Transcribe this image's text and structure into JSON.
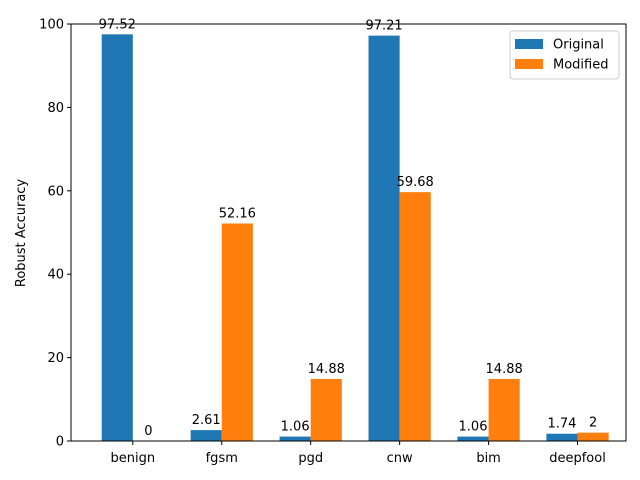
{
  "chart_data": {
    "type": "bar",
    "title": "",
    "xlabel": "",
    "ylabel": "Robust Accuracy",
    "categories": [
      "benign",
      "fgsm",
      "pgd",
      "cnw",
      "bim",
      "deepfool"
    ],
    "series": [
      {
        "name": "Original",
        "color": "#1f77b4",
        "values": [
          97.52,
          2.61,
          1.06,
          97.21,
          1.06,
          1.74
        ],
        "labels": [
          "97.52",
          "2.61",
          "1.06",
          "97.21",
          "1.06",
          "1.74"
        ]
      },
      {
        "name": "Modified",
        "color": "#ff7f0e",
        "values": [
          0,
          52.16,
          14.88,
          59.68,
          14.88,
          2
        ],
        "labels": [
          "0",
          "52.16",
          "14.88",
          "59.68",
          "14.88",
          "2"
        ]
      }
    ],
    "ylim": [
      0,
      100
    ],
    "yticks": [
      0,
      20,
      40,
      60,
      80,
      100
    ],
    "ytick_labels": [
      "0",
      "20",
      "40",
      "60",
      "80",
      "100"
    ],
    "grid": false,
    "legend_position": "top-right"
  }
}
